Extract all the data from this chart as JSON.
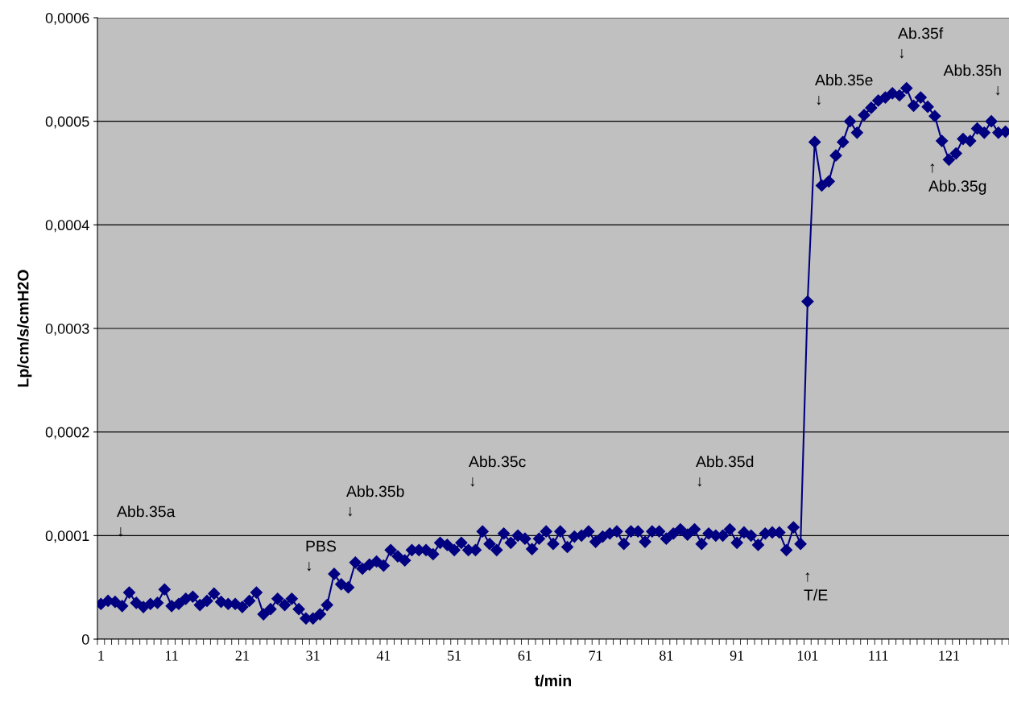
{
  "chart_data": {
    "type": "line",
    "xlabel": "t/min",
    "ylabel": "Lp/cm/s/cmH2O",
    "categories": [
      "1",
      null,
      null,
      null,
      null,
      null,
      null,
      null,
      null,
      null,
      "11",
      null,
      null,
      null,
      null,
      null,
      null,
      null,
      null,
      null,
      "21",
      null,
      null,
      null,
      null,
      null,
      null,
      null,
      null,
      null,
      "31",
      null,
      null,
      null,
      null,
      null,
      null,
      null,
      null,
      null,
      "41",
      null,
      null,
      null,
      null,
      null,
      null,
      null,
      null,
      null,
      "51",
      null,
      null,
      null,
      null,
      null,
      null,
      null,
      null,
      null,
      "61",
      null,
      null,
      null,
      null,
      null,
      null,
      null,
      null,
      null,
      "71",
      null,
      null,
      null,
      null,
      null,
      null,
      null,
      null,
      null,
      "81",
      null,
      null,
      null,
      null,
      null,
      null,
      null,
      null,
      null,
      "91",
      null,
      null,
      null,
      null,
      null,
      null,
      null,
      null,
      null,
      "101",
      null,
      null,
      null,
      null,
      null,
      null,
      null,
      null,
      null,
      "111",
      null,
      null,
      null,
      null,
      null,
      null,
      null,
      null,
      null,
      "121",
      null,
      null,
      null,
      null,
      null,
      null,
      null,
      null
    ],
    "series": [
      {
        "color": "#000080",
        "values": [
          3.4e-05,
          3.7e-05,
          3.6e-05,
          3.2e-05,
          4.5e-05,
          3.5e-05,
          3.1e-05,
          3.4e-05,
          3.5e-05,
          4.8e-05,
          3.2e-05,
          3.4e-05,
          3.9e-05,
          4.1e-05,
          3.3e-05,
          3.7e-05,
          4.4e-05,
          3.6e-05,
          3.4e-05,
          3.4e-05,
          3.1e-05,
          3.7e-05,
          4.5e-05,
          2.4e-05,
          2.9e-05,
          3.9e-05,
          3.3e-05,
          3.9e-05,
          2.9e-05,
          2e-05,
          2e-05,
          2.4e-05,
          3.3e-05,
          6.3e-05,
          5.3e-05,
          5e-05,
          7.4e-05,
          6.8e-05,
          7.2e-05,
          7.5e-05,
          7.1e-05,
          8.6e-05,
          8e-05,
          7.6e-05,
          8.6e-05,
          8.6e-05,
          8.6e-05,
          8.2e-05,
          9.3e-05,
          9.1e-05,
          8.6e-05,
          9.3e-05,
          8.6e-05,
          8.6e-05,
          0.000104,
          9.2e-05,
          8.6e-05,
          0.000102,
          9.3e-05,
          0.0001,
          9.7e-05,
          8.7e-05,
          9.7e-05,
          0.000104,
          9.2e-05,
          0.000104,
          8.9e-05,
          9.9e-05,
          0.0001,
          0.000104,
          9.4e-05,
          9.9e-05,
          0.000102,
          0.000104,
          9.2e-05,
          0.000104,
          0.000104,
          9.4e-05,
          0.000104,
          0.000104,
          9.7e-05,
          0.000102,
          0.000106,
          0.000101,
          0.000106,
          9.2e-05,
          0.000102,
          0.0001,
          0.0001,
          0.000106,
          9.3e-05,
          0.000103,
          0.0001,
          9.1e-05,
          0.000102,
          0.000103,
          0.000103,
          8.6e-05,
          0.000108,
          9.2e-05,
          0.000326,
          0.00048,
          0.000438,
          0.000442,
          0.000467,
          0.00048,
          0.0005,
          0.000489,
          0.000506,
          0.000513,
          0.00052,
          0.000523,
          0.000527,
          0.000525,
          0.000532,
          0.000515,
          0.000523,
          0.000514,
          0.000505,
          0.000481,
          0.000463,
          0.000469,
          0.000483,
          0.000481,
          0.000493,
          0.000489,
          0.0005,
          0.000489,
          0.00049
        ]
      }
    ],
    "ylim": [
      0,
      0.0006
    ],
    "yticks": [
      {
        "value": 0,
        "label": "0"
      },
      {
        "value": 0.0001,
        "label": "0,0001"
      },
      {
        "value": 0.0002,
        "label": "0,0002"
      },
      {
        "value": 0.0003,
        "label": "0,0003"
      },
      {
        "value": 0.0004,
        "label": "0,0004"
      },
      {
        "value": 0.0005,
        "label": "0,0005"
      },
      {
        "value": 0.0006,
        "label": "0,0006"
      }
    ],
    "grid": "y",
    "marker": "diamond",
    "line_style": "solid",
    "legend": false,
    "annotations": [
      "Abb.35a\n↓",
      "PBS\n↓",
      "Abb.35b\n↓",
      "Abb.35c\n↓",
      "Abb.35d\n↓",
      "↑\nT/E",
      "Abb.35e\n↓",
      "Ab.35f\n↓",
      "Abb.35h\n↓",
      "↑\nAbb.35g"
    ]
  }
}
